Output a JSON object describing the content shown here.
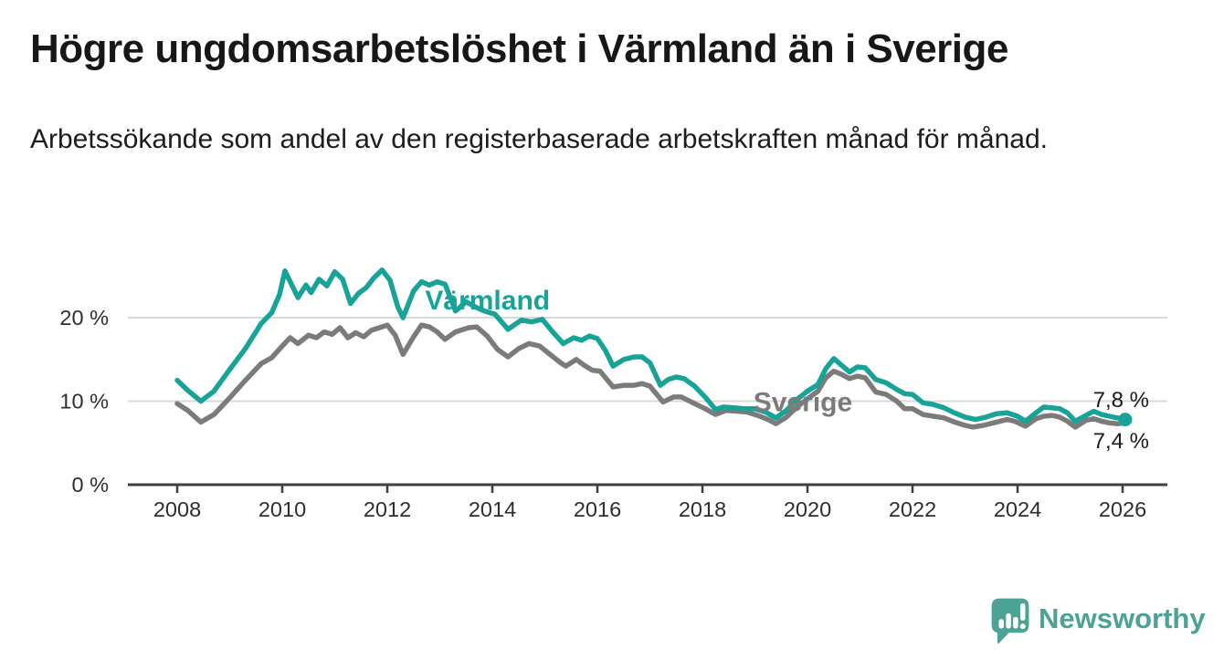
{
  "header": {
    "title": "Högre ungdomsarbetslöshet i Värmland än i Sverige",
    "subtitle": "Arbetssökande som andel av den registerbaserade arbetskraften månad för månad."
  },
  "brand": {
    "name": "Newsworthy",
    "logo_icon": "speech-bubble-bar-chart-exclamation",
    "color": "#4ba295"
  },
  "colors": {
    "varmland_line": "#17a398",
    "sverige_line": "#7b7b7b",
    "gridline": "#d9d9d9",
    "axis": "#3f3f3f",
    "tick_text": "#2e2e2e",
    "end_label_text": "#1a1a1a"
  },
  "chart_data": {
    "type": "line",
    "title": "Högre ungdomsarbetslöshet i Värmland än i Sverige",
    "subtitle": "Arbetssökande som andel av den registerbaserade arbetskraften månad för månad.",
    "unit": "%",
    "xlabel": "",
    "ylabel": "",
    "grid": "horizontal",
    "legend_position": "inline-labels",
    "xlim": [
      2007.05,
      2026.85
    ],
    "ylim": [
      0,
      28
    ],
    "x_ticks": [
      {
        "year": 2008,
        "label": "2008"
      },
      {
        "year": 2010,
        "label": "2010"
      },
      {
        "year": 2012,
        "label": "2012"
      },
      {
        "year": 2014,
        "label": "2014"
      },
      {
        "year": 2016,
        "label": "2016"
      },
      {
        "year": 2018,
        "label": "2018"
      },
      {
        "year": 2020,
        "label": "2020"
      },
      {
        "year": 2022,
        "label": "2022"
      },
      {
        "year": 2024,
        "label": "2024"
      },
      {
        "year": 2026,
        "label": "2026"
      }
    ],
    "y_ticks": [
      {
        "value": 0,
        "label": "0 %"
      },
      {
        "value": 10,
        "label": "10 %"
      },
      {
        "value": 20,
        "label": "20 %"
      }
    ],
    "series": [
      {
        "name": "Sverige",
        "color": "#7b7b7b",
        "end_label": "7,4 %",
        "label_anchor": {
          "x": 2018.97,
          "y": 8.8
        },
        "end_marker": false,
        "points": [
          [
            2008.0,
            9.7
          ],
          [
            2008.2,
            8.9
          ],
          [
            2008.45,
            7.5
          ],
          [
            2008.7,
            8.4
          ],
          [
            2009.0,
            10.4
          ],
          [
            2009.3,
            12.5
          ],
          [
            2009.6,
            14.5
          ],
          [
            2009.8,
            15.2
          ],
          [
            2010.0,
            16.6
          ],
          [
            2010.15,
            17.6
          ],
          [
            2010.3,
            16.9
          ],
          [
            2010.5,
            17.9
          ],
          [
            2010.65,
            17.6
          ],
          [
            2010.8,
            18.3
          ],
          [
            2010.95,
            18.0
          ],
          [
            2011.1,
            18.8
          ],
          [
            2011.25,
            17.6
          ],
          [
            2011.4,
            18.2
          ],
          [
            2011.55,
            17.7
          ],
          [
            2011.7,
            18.5
          ],
          [
            2011.85,
            18.8
          ],
          [
            2012.0,
            19.1
          ],
          [
            2012.15,
            17.9
          ],
          [
            2012.3,
            15.6
          ],
          [
            2012.5,
            17.7
          ],
          [
            2012.65,
            19.1
          ],
          [
            2012.8,
            18.9
          ],
          [
            2012.95,
            18.3
          ],
          [
            2013.1,
            17.4
          ],
          [
            2013.3,
            18.3
          ],
          [
            2013.55,
            18.8
          ],
          [
            2013.7,
            18.9
          ],
          [
            2013.9,
            17.8
          ],
          [
            2014.1,
            16.2
          ],
          [
            2014.3,
            15.3
          ],
          [
            2014.5,
            16.3
          ],
          [
            2014.7,
            16.9
          ],
          [
            2014.9,
            16.6
          ],
          [
            2015.1,
            15.6
          ],
          [
            2015.3,
            14.6
          ],
          [
            2015.4,
            14.2
          ],
          [
            2015.6,
            15.0
          ],
          [
            2015.75,
            14.3
          ],
          [
            2015.9,
            13.7
          ],
          [
            2016.05,
            13.6
          ],
          [
            2016.3,
            11.7
          ],
          [
            2016.5,
            11.9
          ],
          [
            2016.7,
            11.9
          ],
          [
            2016.85,
            12.1
          ],
          [
            2017.0,
            11.8
          ],
          [
            2017.25,
            9.9
          ],
          [
            2017.45,
            10.5
          ],
          [
            2017.6,
            10.5
          ],
          [
            2017.85,
            9.7
          ],
          [
            2018.05,
            9.1
          ],
          [
            2018.25,
            8.4
          ],
          [
            2018.45,
            8.9
          ],
          [
            2018.65,
            8.8
          ],
          [
            2018.85,
            8.7
          ],
          [
            2019.05,
            8.3
          ],
          [
            2019.25,
            7.8
          ],
          [
            2019.4,
            7.3
          ],
          [
            2019.6,
            8.1
          ],
          [
            2019.8,
            9.3
          ],
          [
            2020.0,
            10.3
          ],
          [
            2020.2,
            11.2
          ],
          [
            2020.35,
            12.8
          ],
          [
            2020.5,
            13.6
          ],
          [
            2020.65,
            13.2
          ],
          [
            2020.8,
            12.7
          ],
          [
            2020.95,
            13.0
          ],
          [
            2021.1,
            12.8
          ],
          [
            2021.3,
            11.1
          ],
          [
            2021.5,
            10.8
          ],
          [
            2021.7,
            10.0
          ],
          [
            2021.85,
            9.1
          ],
          [
            2022.0,
            9.1
          ],
          [
            2022.2,
            8.4
          ],
          [
            2022.4,
            8.2
          ],
          [
            2022.6,
            8.0
          ],
          [
            2022.8,
            7.5
          ],
          [
            2023.0,
            7.1
          ],
          [
            2023.15,
            6.9
          ],
          [
            2023.35,
            7.1
          ],
          [
            2023.6,
            7.5
          ],
          [
            2023.8,
            7.8
          ],
          [
            2023.95,
            7.6
          ],
          [
            2024.15,
            7.0
          ],
          [
            2024.35,
            7.9
          ],
          [
            2024.5,
            8.2
          ],
          [
            2024.65,
            8.3
          ],
          [
            2024.8,
            8.1
          ],
          [
            2024.95,
            7.6
          ],
          [
            2025.1,
            6.9
          ],
          [
            2025.3,
            7.7
          ],
          [
            2025.45,
            7.9
          ],
          [
            2025.6,
            7.6
          ],
          [
            2025.75,
            7.4
          ],
          [
            2025.9,
            7.3
          ],
          [
            2026.05,
            7.4
          ]
        ]
      },
      {
        "name": "Värmland",
        "color": "#17a398",
        "end_label": "7,8 %",
        "label_anchor": {
          "x": 2012.72,
          "y": 21.0
        },
        "end_marker": true,
        "points": [
          [
            2008.0,
            12.5
          ],
          [
            2008.2,
            11.3
          ],
          [
            2008.45,
            10.0
          ],
          [
            2008.7,
            11.2
          ],
          [
            2009.0,
            13.8
          ],
          [
            2009.3,
            16.3
          ],
          [
            2009.6,
            19.3
          ],
          [
            2009.8,
            20.6
          ],
          [
            2009.95,
            22.8
          ],
          [
            2010.05,
            25.6
          ],
          [
            2010.3,
            22.4
          ],
          [
            2010.45,
            23.9
          ],
          [
            2010.55,
            23.0
          ],
          [
            2010.7,
            24.6
          ],
          [
            2010.85,
            23.8
          ],
          [
            2011.0,
            25.5
          ],
          [
            2011.15,
            24.6
          ],
          [
            2011.3,
            21.7
          ],
          [
            2011.45,
            22.9
          ],
          [
            2011.6,
            23.6
          ],
          [
            2011.75,
            24.8
          ],
          [
            2011.9,
            25.7
          ],
          [
            2012.05,
            24.5
          ],
          [
            2012.2,
            21.3
          ],
          [
            2012.3,
            20.0
          ],
          [
            2012.5,
            23.2
          ],
          [
            2012.65,
            24.3
          ],
          [
            2012.8,
            23.9
          ],
          [
            2012.95,
            24.3
          ],
          [
            2013.1,
            24.0
          ],
          [
            2013.3,
            20.8
          ],
          [
            2013.5,
            21.9
          ],
          [
            2013.7,
            21.2
          ],
          [
            2013.85,
            20.8
          ],
          [
            2014.05,
            20.4
          ],
          [
            2014.3,
            18.6
          ],
          [
            2014.55,
            19.7
          ],
          [
            2014.75,
            19.5
          ],
          [
            2014.95,
            19.8
          ],
          [
            2015.15,
            18.3
          ],
          [
            2015.35,
            16.9
          ],
          [
            2015.55,
            17.6
          ],
          [
            2015.7,
            17.3
          ],
          [
            2015.85,
            17.8
          ],
          [
            2016.0,
            17.5
          ],
          [
            2016.15,
            16.1
          ],
          [
            2016.3,
            14.2
          ],
          [
            2016.5,
            15.0
          ],
          [
            2016.7,
            15.3
          ],
          [
            2016.85,
            15.3
          ],
          [
            2017.0,
            14.6
          ],
          [
            2017.2,
            11.9
          ],
          [
            2017.35,
            12.6
          ],
          [
            2017.5,
            12.9
          ],
          [
            2017.65,
            12.7
          ],
          [
            2017.85,
            11.8
          ],
          [
            2018.05,
            10.5
          ],
          [
            2018.25,
            9.0
          ],
          [
            2018.4,
            9.3
          ],
          [
            2018.6,
            9.2
          ],
          [
            2018.8,
            9.1
          ],
          [
            2019.0,
            9.1
          ],
          [
            2019.2,
            8.7
          ],
          [
            2019.4,
            8.0
          ],
          [
            2019.6,
            8.9
          ],
          [
            2019.8,
            10.2
          ],
          [
            2020.0,
            11.2
          ],
          [
            2020.2,
            12.0
          ],
          [
            2020.35,
            13.9
          ],
          [
            2020.5,
            15.1
          ],
          [
            2020.65,
            14.3
          ],
          [
            2020.8,
            13.5
          ],
          [
            2020.95,
            14.1
          ],
          [
            2021.1,
            14.0
          ],
          [
            2021.3,
            12.6
          ],
          [
            2021.5,
            12.2
          ],
          [
            2021.7,
            11.4
          ],
          [
            2021.85,
            10.9
          ],
          [
            2022.0,
            10.8
          ],
          [
            2022.2,
            9.8
          ],
          [
            2022.4,
            9.6
          ],
          [
            2022.6,
            9.2
          ],
          [
            2022.8,
            8.6
          ],
          [
            2023.0,
            8.1
          ],
          [
            2023.2,
            7.8
          ],
          [
            2023.4,
            8.1
          ],
          [
            2023.6,
            8.5
          ],
          [
            2023.8,
            8.6
          ],
          [
            2024.0,
            8.2
          ],
          [
            2024.15,
            7.6
          ],
          [
            2024.35,
            8.6
          ],
          [
            2024.5,
            9.3
          ],
          [
            2024.65,
            9.2
          ],
          [
            2024.8,
            9.1
          ],
          [
            2024.95,
            8.6
          ],
          [
            2025.1,
            7.6
          ],
          [
            2025.3,
            8.3
          ],
          [
            2025.45,
            8.8
          ],
          [
            2025.6,
            8.4
          ],
          [
            2025.75,
            8.2
          ],
          [
            2025.9,
            8.0
          ],
          [
            2026.05,
            7.8
          ]
        ]
      }
    ]
  }
}
